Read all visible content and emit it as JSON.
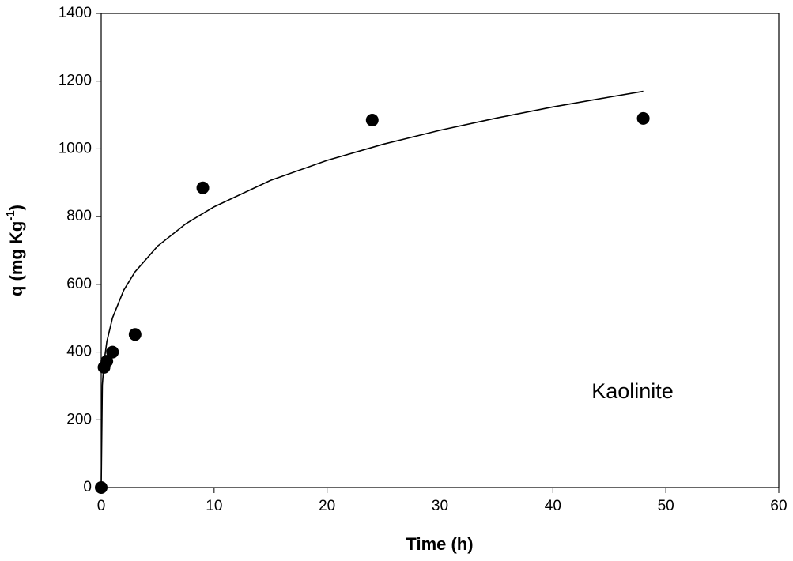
{
  "chart_data": {
    "type": "scatter",
    "xlabel": "Time (h)",
    "ylabel": {
      "text": "q (mg Kg",
      "sup": "-1",
      "end": ")"
    },
    "annotation": "Kaolinite",
    "xlim": [
      0,
      60
    ],
    "xticks": [
      0,
      10,
      20,
      30,
      40,
      50,
      60
    ],
    "ylim": [
      0,
      1400
    ],
    "yticks": [
      0,
      200,
      400,
      600,
      800,
      1000,
      1200,
      1400
    ],
    "grid": false,
    "series": [
      {
        "mode": "markers",
        "color": "#000000",
        "x": [
          0,
          0.25,
          0.5,
          1,
          3,
          9,
          24,
          48
        ],
        "values": [
          0,
          355,
          373,
          400,
          452,
          885,
          1085,
          1090
        ]
      },
      {
        "mode": "line",
        "color": "#000000",
        "x": [
          0,
          0.1,
          0.25,
          0.5,
          1,
          2,
          3,
          5,
          7.5,
          10,
          15,
          20,
          25,
          30,
          35,
          40,
          45,
          48
        ],
        "values": [
          0,
          302,
          370,
          431,
          501,
          583,
          637,
          713,
          779,
          829,
          907,
          966,
          1014,
          1055,
          1091,
          1124,
          1153,
          1170
        ]
      }
    ]
  }
}
